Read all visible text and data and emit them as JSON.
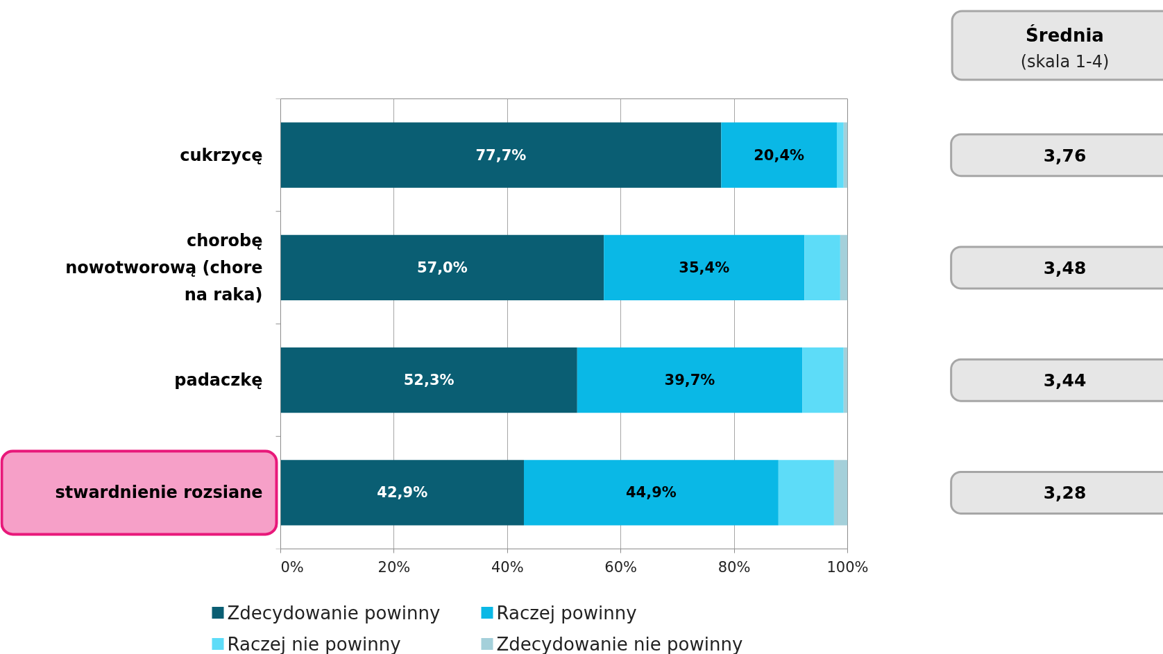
{
  "chart_data": {
    "type": "bar",
    "orientation": "horizontal",
    "stacked": true,
    "categories": [
      "cukrzycę",
      "chorobę nowotworową (chore na raka)",
      "padaczkę",
      "stwardnienie rozsiane"
    ],
    "series": [
      {
        "name": "Zdecydowanie powinny",
        "color": "#0a5e73",
        "values": [
          77.7,
          57.0,
          52.3,
          42.9
        ],
        "value_labels": [
          "77,7%",
          "57,0%",
          "52,3%",
          "42,9%"
        ]
      },
      {
        "name": "Raczej powinny",
        "color": "#0ab8e6",
        "values": [
          20.4,
          35.4,
          39.7,
          44.9
        ],
        "value_labels": [
          "20,4%",
          "35,4%",
          "39,7%",
          "44,9%"
        ]
      },
      {
        "name": "Raczej nie powinny",
        "color": "#5ddcf8",
        "values": [
          1.2,
          6.3,
          7.3,
          9.8
        ]
      },
      {
        "name": "Zdecydowanie nie powinny",
        "color": "#a4d0da",
        "values": [
          0.7,
          1.3,
          0.7,
          2.4
        ]
      }
    ],
    "xlim": [
      0,
      100
    ],
    "xticks": [
      {
        "value": 0,
        "label": "0%"
      },
      {
        "value": 20,
        "label": "20%"
      },
      {
        "value": 40,
        "label": "40%"
      },
      {
        "value": 60,
        "label": "60%"
      },
      {
        "value": 80,
        "label": "80%"
      },
      {
        "value": 100,
        "label": "100%"
      }
    ],
    "grid": "x",
    "legend": "bottom",
    "annotations": [
      "Średnia",
      "(skala 1-4)",
      "3,76",
      "3,48",
      "3,44",
      "3,28"
    ]
  }
}
